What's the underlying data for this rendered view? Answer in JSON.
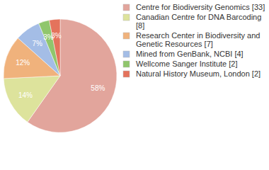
{
  "chart_data": {
    "type": "pie",
    "categories": [
      "Centre for Biodiversity Genomics [33]",
      "Canadian Centre for DNA Barcoding [8]",
      "Research Center in Biodiversity and Genetic Resources [7]",
      "Mined from GenBank, NCBI [4]",
      "Wellcome Sanger Institute [2]",
      "Natural History Museum, London [2]"
    ],
    "values": [
      58,
      14,
      12,
      7,
      3,
      3
    ],
    "value_labels": [
      "58%",
      "14%",
      "12%",
      "7%",
      "3%",
      "3%"
    ],
    "colors": [
      "#e2a59c",
      "#dde39c",
      "#f0b27c",
      "#a4bde6",
      "#90c66c",
      "#e4735c"
    ],
    "data_labels": true,
    "legend": "upper right"
  }
}
